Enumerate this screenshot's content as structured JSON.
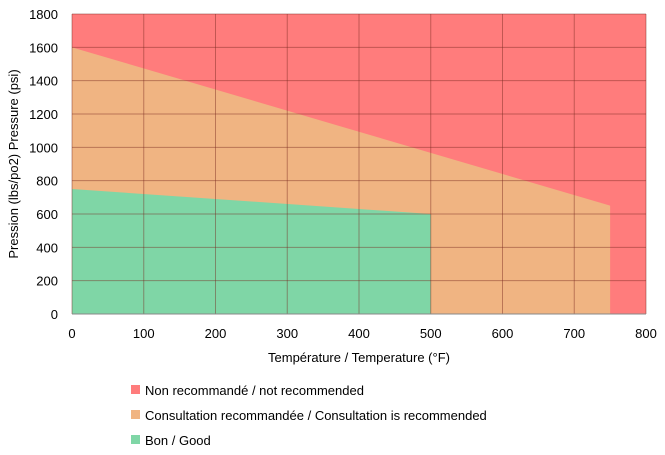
{
  "chart_data": {
    "type": "area",
    "xlabel": "Température / Temperature (°F)",
    "ylabel": "Pression (lbs/po2) Pressure (psi)",
    "xlim": [
      0,
      800
    ],
    "ylim": [
      0,
      1800
    ],
    "xticks": [
      0,
      100,
      200,
      300,
      400,
      500,
      600,
      700,
      800
    ],
    "yticks": [
      0,
      200,
      400,
      600,
      800,
      1000,
      1200,
      1400,
      1600,
      1800
    ],
    "grid": true,
    "legend_position": "bottom",
    "series": [
      {
        "name": "Non recommandé / not recommended",
        "color": "#FF7C7C",
        "polygon": [
          [
            0,
            0
          ],
          [
            800,
            0
          ],
          [
            800,
            1800
          ],
          [
            0,
            1800
          ]
        ]
      },
      {
        "name": "Consultation recommandée / Consultation is recommended",
        "color": "#F0B482",
        "polygon": [
          [
            0,
            0
          ],
          [
            750,
            0
          ],
          [
            750,
            650
          ],
          [
            0,
            1600
          ]
        ]
      },
      {
        "name": "Bon / Good",
        "color": "#7FD6A6",
        "polygon": [
          [
            0,
            0
          ],
          [
            500,
            0
          ],
          [
            500,
            600
          ],
          [
            0,
            750
          ]
        ]
      }
    ]
  }
}
